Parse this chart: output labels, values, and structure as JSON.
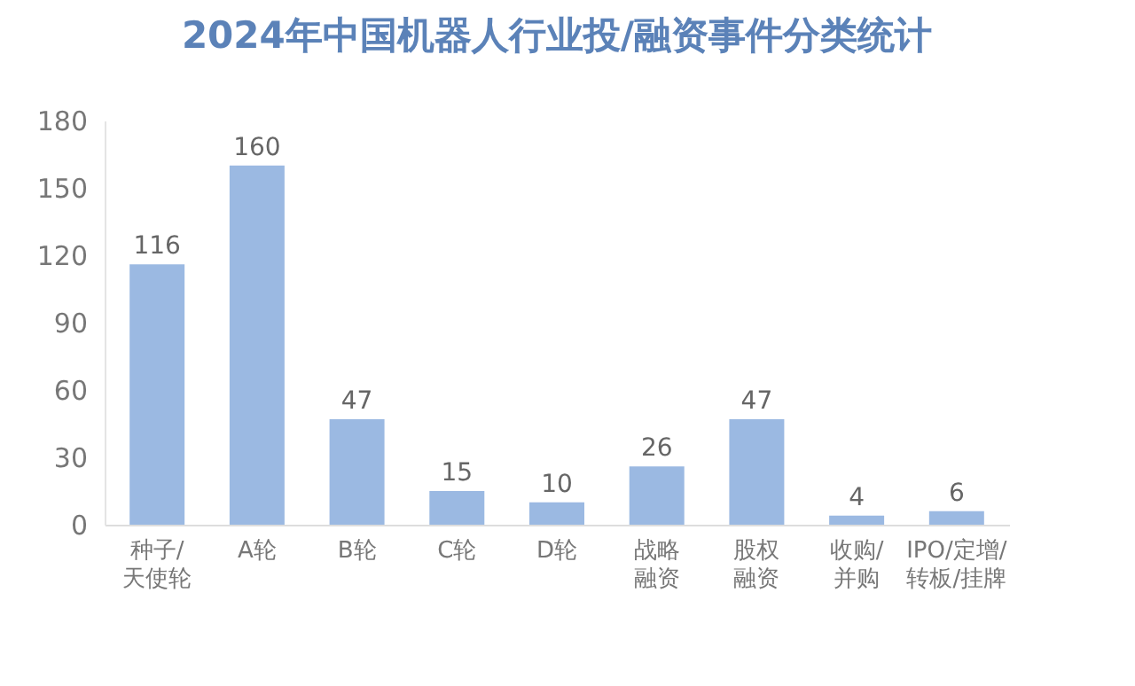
{
  "chart_data": {
    "type": "bar",
    "title": "2024年中国机器人行业投/融资事件分类统计",
    "categories": [
      "种子/天使轮",
      "A轮",
      "B轮",
      "C轮",
      "D轮",
      "战略融资",
      "股权融资",
      "收购/并购",
      "IPO/定增/转板/挂牌"
    ],
    "values": [
      116,
      160,
      47,
      15,
      10,
      26,
      47,
      4,
      6
    ],
    "color": "#9bb9e2",
    "ylim": [
      0,
      180
    ],
    "yticks": [
      0,
      30,
      60,
      90,
      120,
      150,
      180
    ],
    "data_labels": true
  }
}
